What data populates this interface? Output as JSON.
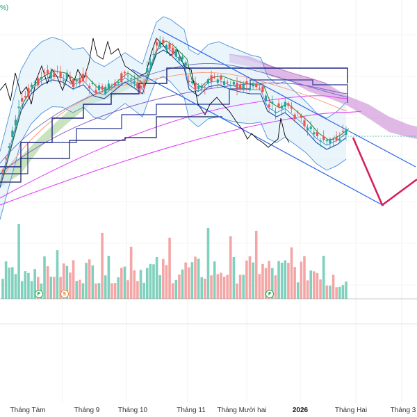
{
  "corner_fragment": "%)",
  "x_axis_labels": [
    {
      "text": "Tháng Tám",
      "bold": false
    },
    {
      "text": "Tháng 9",
      "bold": false
    },
    {
      "text": "Tháng 10",
      "bold": false
    },
    {
      "text": "Tháng 11",
      "bold": false
    },
    {
      "text": "Tháng Mười hai",
      "bold": false
    },
    {
      "text": "2026",
      "bold": true
    },
    {
      "text": "Tháng Hai",
      "bold": false
    },
    {
      "text": "Tháng 3",
      "bold": false
    }
  ],
  "event_markers": [
    {
      "letter": "F",
      "kind": "f",
      "bar": 11
    },
    {
      "letter": "S",
      "kind": "s",
      "bar": 19
    },
    {
      "letter": "F",
      "kind": "f",
      "bar": 83
    }
  ],
  "colors": {
    "up": "#26a69a",
    "down": "#ef5350",
    "volume_up": "#7fd1bd",
    "volume_down": "#f4a6a6",
    "channel": "#2563eb",
    "projection": "#d61f5a",
    "cloud_bull": "#9ccc8a",
    "cloud_bear": "#c77dd1",
    "ma_dark": "#1a237e",
    "ma_magenta": "#e040fb",
    "ma_violet": "#7e57c2",
    "bollinger": "#4a90d9",
    "lagging": "#000000",
    "tenkan": "#0d47a1",
    "kijun": "#2e7d32"
  },
  "chart_data": {
    "type": "candlestick",
    "indicators": [
      "Ichimoku cloud",
      "Bollinger bands",
      "moving averages",
      "volume",
      "descending channel",
      "projected path"
    ],
    "x_tick_labels": [
      "Tháng Tám",
      "Tháng 9",
      "Tháng 10",
      "Tháng 11",
      "Tháng Mười hai",
      "2026",
      "Tháng Hai",
      "Tháng 3"
    ],
    "price_trend": "rising from early August to a peak in October, then a descending channel into February",
    "projection": "red path dropping to the lower channel line then rebounding, drawn into March",
    "grid": true,
    "y_axis": "not visible"
  }
}
